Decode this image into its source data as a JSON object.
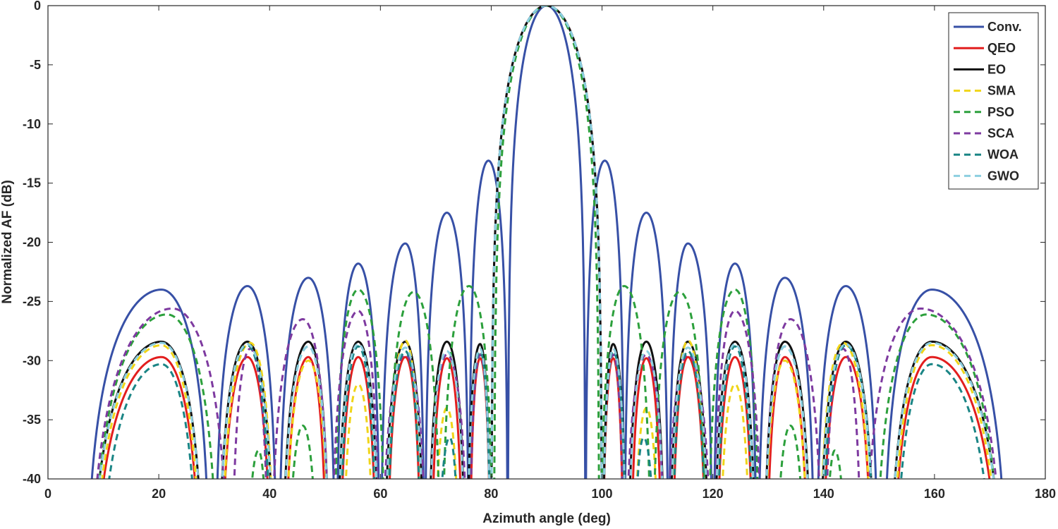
{
  "chart_data": {
    "type": "line",
    "title": "",
    "xlabel": "Azimuth angle (deg)",
    "ylabel": "Normalized AF (dB)",
    "xlim": [
      0,
      180
    ],
    "ylim": [
      -40,
      0
    ],
    "xticks": [
      0,
      20,
      40,
      60,
      80,
      100,
      120,
      140,
      160,
      180
    ],
    "yticks": [
      0,
      -5,
      -10,
      -15,
      -20,
      -25,
      -30,
      -35,
      -40
    ],
    "grid": false,
    "legend_position": "top-right",
    "series": [
      {
        "name": "Conv.",
        "color": "#3750a6",
        "dash": "solid",
        "lobes": [
          [
            6.5,
            20.5,
            29.5,
            -24.0
          ],
          [
            30.0,
            36.0,
            41.5,
            -23.7
          ],
          [
            41.5,
            47.0,
            52.0,
            -23.0
          ],
          [
            52.0,
            56.0,
            60.0,
            -21.8
          ],
          [
            60.0,
            64.5,
            68.0,
            -20.1
          ],
          [
            68.0,
            72.0,
            76.0,
            -17.5
          ],
          [
            76.0,
            79.5,
            83.0,
            -13.1
          ],
          [
            83.0,
            90.0,
            97.0,
            0.0
          ],
          [
            97.0,
            100.5,
            104.0,
            -13.1
          ],
          [
            104.0,
            108.0,
            112.0,
            -17.5
          ],
          [
            112.0,
            115.5,
            120.0,
            -20.1
          ],
          [
            120.0,
            124.0,
            128.0,
            -21.8
          ],
          [
            128.0,
            133.0,
            138.5,
            -23.0
          ],
          [
            138.5,
            144.0,
            150.0,
            -23.7
          ],
          [
            150.5,
            159.5,
            173.5,
            -24.0
          ]
        ]
      },
      {
        "name": "QEO",
        "color": "#e21e1e",
        "dash": "solid",
        "lobes": [
          [
            7.5,
            20.5,
            28.0,
            -29.7
          ],
          [
            31.0,
            36.0,
            40.5,
            -29.7
          ],
          [
            42.5,
            47.0,
            50.5,
            -29.7
          ],
          [
            52.5,
            56.0,
            59.5,
            -29.7
          ],
          [
            61.0,
            64.5,
            67.5,
            -29.7
          ],
          [
            69.0,
            72.0,
            75.0,
            -29.8
          ],
          [
            76.0,
            78.0,
            80.0,
            -29.8
          ],
          [
            80.0,
            90.0,
            100.0,
            0.0
          ],
          [
            100.0,
            102.0,
            104.0,
            -29.8
          ],
          [
            105.0,
            108.0,
            111.0,
            -29.8
          ],
          [
            112.5,
            115.5,
            119.0,
            -29.7
          ],
          [
            120.5,
            124.0,
            127.5,
            -29.7
          ],
          [
            129.5,
            133.0,
            137.5,
            -29.7
          ],
          [
            139.5,
            144.0,
            149.0,
            -29.7
          ],
          [
            152.0,
            159.5,
            172.5,
            -29.7
          ]
        ]
      },
      {
        "name": "EO",
        "color": "#111111",
        "dash": "solid",
        "lobes": [
          [
            7.0,
            20.5,
            28.5,
            -28.4
          ],
          [
            30.5,
            36.0,
            41.0,
            -28.4
          ],
          [
            42.0,
            47.0,
            51.0,
            -28.4
          ],
          [
            52.0,
            56.0,
            60.0,
            -28.4
          ],
          [
            60.5,
            64.5,
            68.0,
            -28.4
          ],
          [
            68.5,
            72.0,
            75.5,
            -28.4
          ],
          [
            75.5,
            78.0,
            80.0,
            -28.6
          ],
          [
            80.0,
            90.0,
            100.0,
            0.0
          ],
          [
            100.0,
            102.0,
            104.5,
            -28.6
          ],
          [
            104.5,
            108.0,
            111.5,
            -28.4
          ],
          [
            112.0,
            115.5,
            119.5,
            -28.4
          ],
          [
            120.0,
            124.0,
            128.0,
            -28.4
          ],
          [
            129.0,
            133.0,
            138.0,
            -28.4
          ],
          [
            139.0,
            144.0,
            149.5,
            -28.4
          ],
          [
            151.5,
            159.5,
            173.0,
            -28.4
          ]
        ]
      },
      {
        "name": "SMA",
        "color": "#f0d518",
        "dash": "dashed",
        "lobes": [
          [
            7.5,
            20.5,
            28.0,
            -28.7
          ],
          [
            31.0,
            36.5,
            41.0,
            -28.5
          ],
          [
            42.5,
            47.0,
            51.0,
            -30.0
          ],
          [
            53.0,
            56.0,
            59.0,
            -32.0
          ],
          [
            61.0,
            64.5,
            67.5,
            -28.3
          ],
          [
            69.5,
            72.0,
            74.5,
            -34.0
          ],
          [
            76.0,
            78.0,
            80.0,
            -29.5
          ],
          [
            80.0,
            90.0,
            100.0,
            0.0
          ],
          [
            100.0,
            102.0,
            104.0,
            -29.5
          ],
          [
            105.5,
            108.0,
            110.5,
            -34.0
          ],
          [
            112.5,
            115.5,
            119.0,
            -28.3
          ],
          [
            121.0,
            124.0,
            127.0,
            -32.0
          ],
          [
            129.0,
            133.0,
            137.5,
            -30.0
          ],
          [
            139.0,
            143.5,
            149.0,
            -28.5
          ],
          [
            152.0,
            159.5,
            172.5,
            -28.7
          ]
        ]
      },
      {
        "name": "PSO",
        "color": "#2ca03c",
        "dash": "dashed",
        "lobes": [
          [
            7.5,
            21.5,
            31.0,
            -26.1
          ],
          [
            35.5,
            38.0,
            40.0,
            -37.6
          ],
          [
            43.0,
            46.0,
            49.0,
            -35.5
          ],
          [
            51.5,
            56.0,
            61.0,
            -24.0
          ],
          [
            61.0,
            66.0,
            71.0,
            -24.2
          ],
          [
            71.0,
            76.0,
            80.5,
            -23.7
          ],
          [
            80.5,
            90.0,
            99.5,
            0.0
          ],
          [
            99.5,
            104.0,
            109.0,
            -23.7
          ],
          [
            109.0,
            114.0,
            119.0,
            -24.2
          ],
          [
            119.0,
            124.0,
            128.5,
            -24.0
          ],
          [
            131.0,
            134.0,
            137.0,
            -35.5
          ],
          [
            140.0,
            142.0,
            144.5,
            -37.6
          ],
          [
            149.0,
            158.5,
            172.5,
            -26.1
          ]
        ]
      },
      {
        "name": "SCA",
        "color": "#7e3aa0",
        "dash": "dashed",
        "lobes": [
          [
            7.0,
            22.5,
            33.0,
            -25.6
          ],
          [
            33.0,
            36.5,
            40.0,
            -29.0
          ],
          [
            40.0,
            46.0,
            51.0,
            -26.5
          ],
          [
            51.0,
            56.0,
            60.0,
            -25.8
          ],
          [
            60.0,
            64.5,
            68.5,
            -29.5
          ],
          [
            68.5,
            72.0,
            76.0,
            -29.5
          ],
          [
            76.0,
            78.0,
            80.0,
            -29.5
          ],
          [
            80.0,
            90.0,
            100.0,
            0.0
          ],
          [
            100.0,
            102.0,
            104.0,
            -29.5
          ],
          [
            104.0,
            108.0,
            111.5,
            -29.5
          ],
          [
            111.5,
            115.5,
            120.0,
            -29.5
          ],
          [
            120.0,
            124.0,
            129.0,
            -25.8
          ],
          [
            129.0,
            134.0,
            140.0,
            -26.5
          ],
          [
            140.0,
            143.5,
            147.0,
            -29.0
          ],
          [
            147.0,
            157.5,
            173.0,
            -25.6
          ]
        ]
      },
      {
        "name": "WOA",
        "color": "#1a8585",
        "dash": "dashed",
        "lobes": [
          [
            8.5,
            20.5,
            27.5,
            -30.3
          ],
          [
            30.5,
            36.0,
            40.5,
            -28.7
          ],
          [
            42.0,
            47.0,
            51.0,
            -28.8
          ],
          [
            52.5,
            56.0,
            59.5,
            -28.8
          ],
          [
            61.0,
            64.5,
            67.5,
            -29.2
          ],
          [
            70.0,
            72.5,
            74.5,
            -36.5
          ],
          [
            75.5,
            78.0,
            80.0,
            -29.2
          ],
          [
            80.0,
            90.0,
            100.0,
            0.0
          ],
          [
            100.0,
            102.0,
            104.5,
            -29.2
          ],
          [
            105.5,
            107.5,
            110.0,
            -36.5
          ],
          [
            112.5,
            115.5,
            119.0,
            -29.2
          ],
          [
            120.5,
            124.0,
            127.5,
            -28.8
          ],
          [
            129.0,
            133.0,
            138.0,
            -28.8
          ],
          [
            139.5,
            144.0,
            149.5,
            -28.7
          ],
          [
            152.5,
            159.5,
            171.5,
            -30.3
          ]
        ]
      },
      {
        "name": "GWO",
        "color": "#8ccfe0",
        "dash": "dashed",
        "lobes": [
          [
            7.0,
            20.5,
            28.5,
            -28.5
          ],
          [
            30.5,
            36.0,
            41.0,
            -28.6
          ],
          [
            42.0,
            47.0,
            51.0,
            -28.8
          ],
          [
            52.0,
            56.0,
            60.0,
            -28.6
          ],
          [
            60.5,
            64.5,
            68.0,
            -28.9
          ],
          [
            68.5,
            72.0,
            75.5,
            -29.2
          ],
          [
            75.5,
            78.0,
            80.0,
            -29.0
          ],
          [
            80.0,
            90.0,
            100.0,
            0.0
          ],
          [
            100.0,
            102.0,
            104.5,
            -29.0
          ],
          [
            104.5,
            108.0,
            111.5,
            -29.2
          ],
          [
            112.0,
            115.5,
            119.5,
            -28.9
          ],
          [
            120.0,
            124.0,
            128.0,
            -28.6
          ],
          [
            129.0,
            133.0,
            138.0,
            -28.8
          ],
          [
            139.0,
            144.0,
            149.5,
            -28.6
          ],
          [
            151.5,
            159.5,
            173.0,
            -28.5
          ]
        ]
      }
    ]
  }
}
